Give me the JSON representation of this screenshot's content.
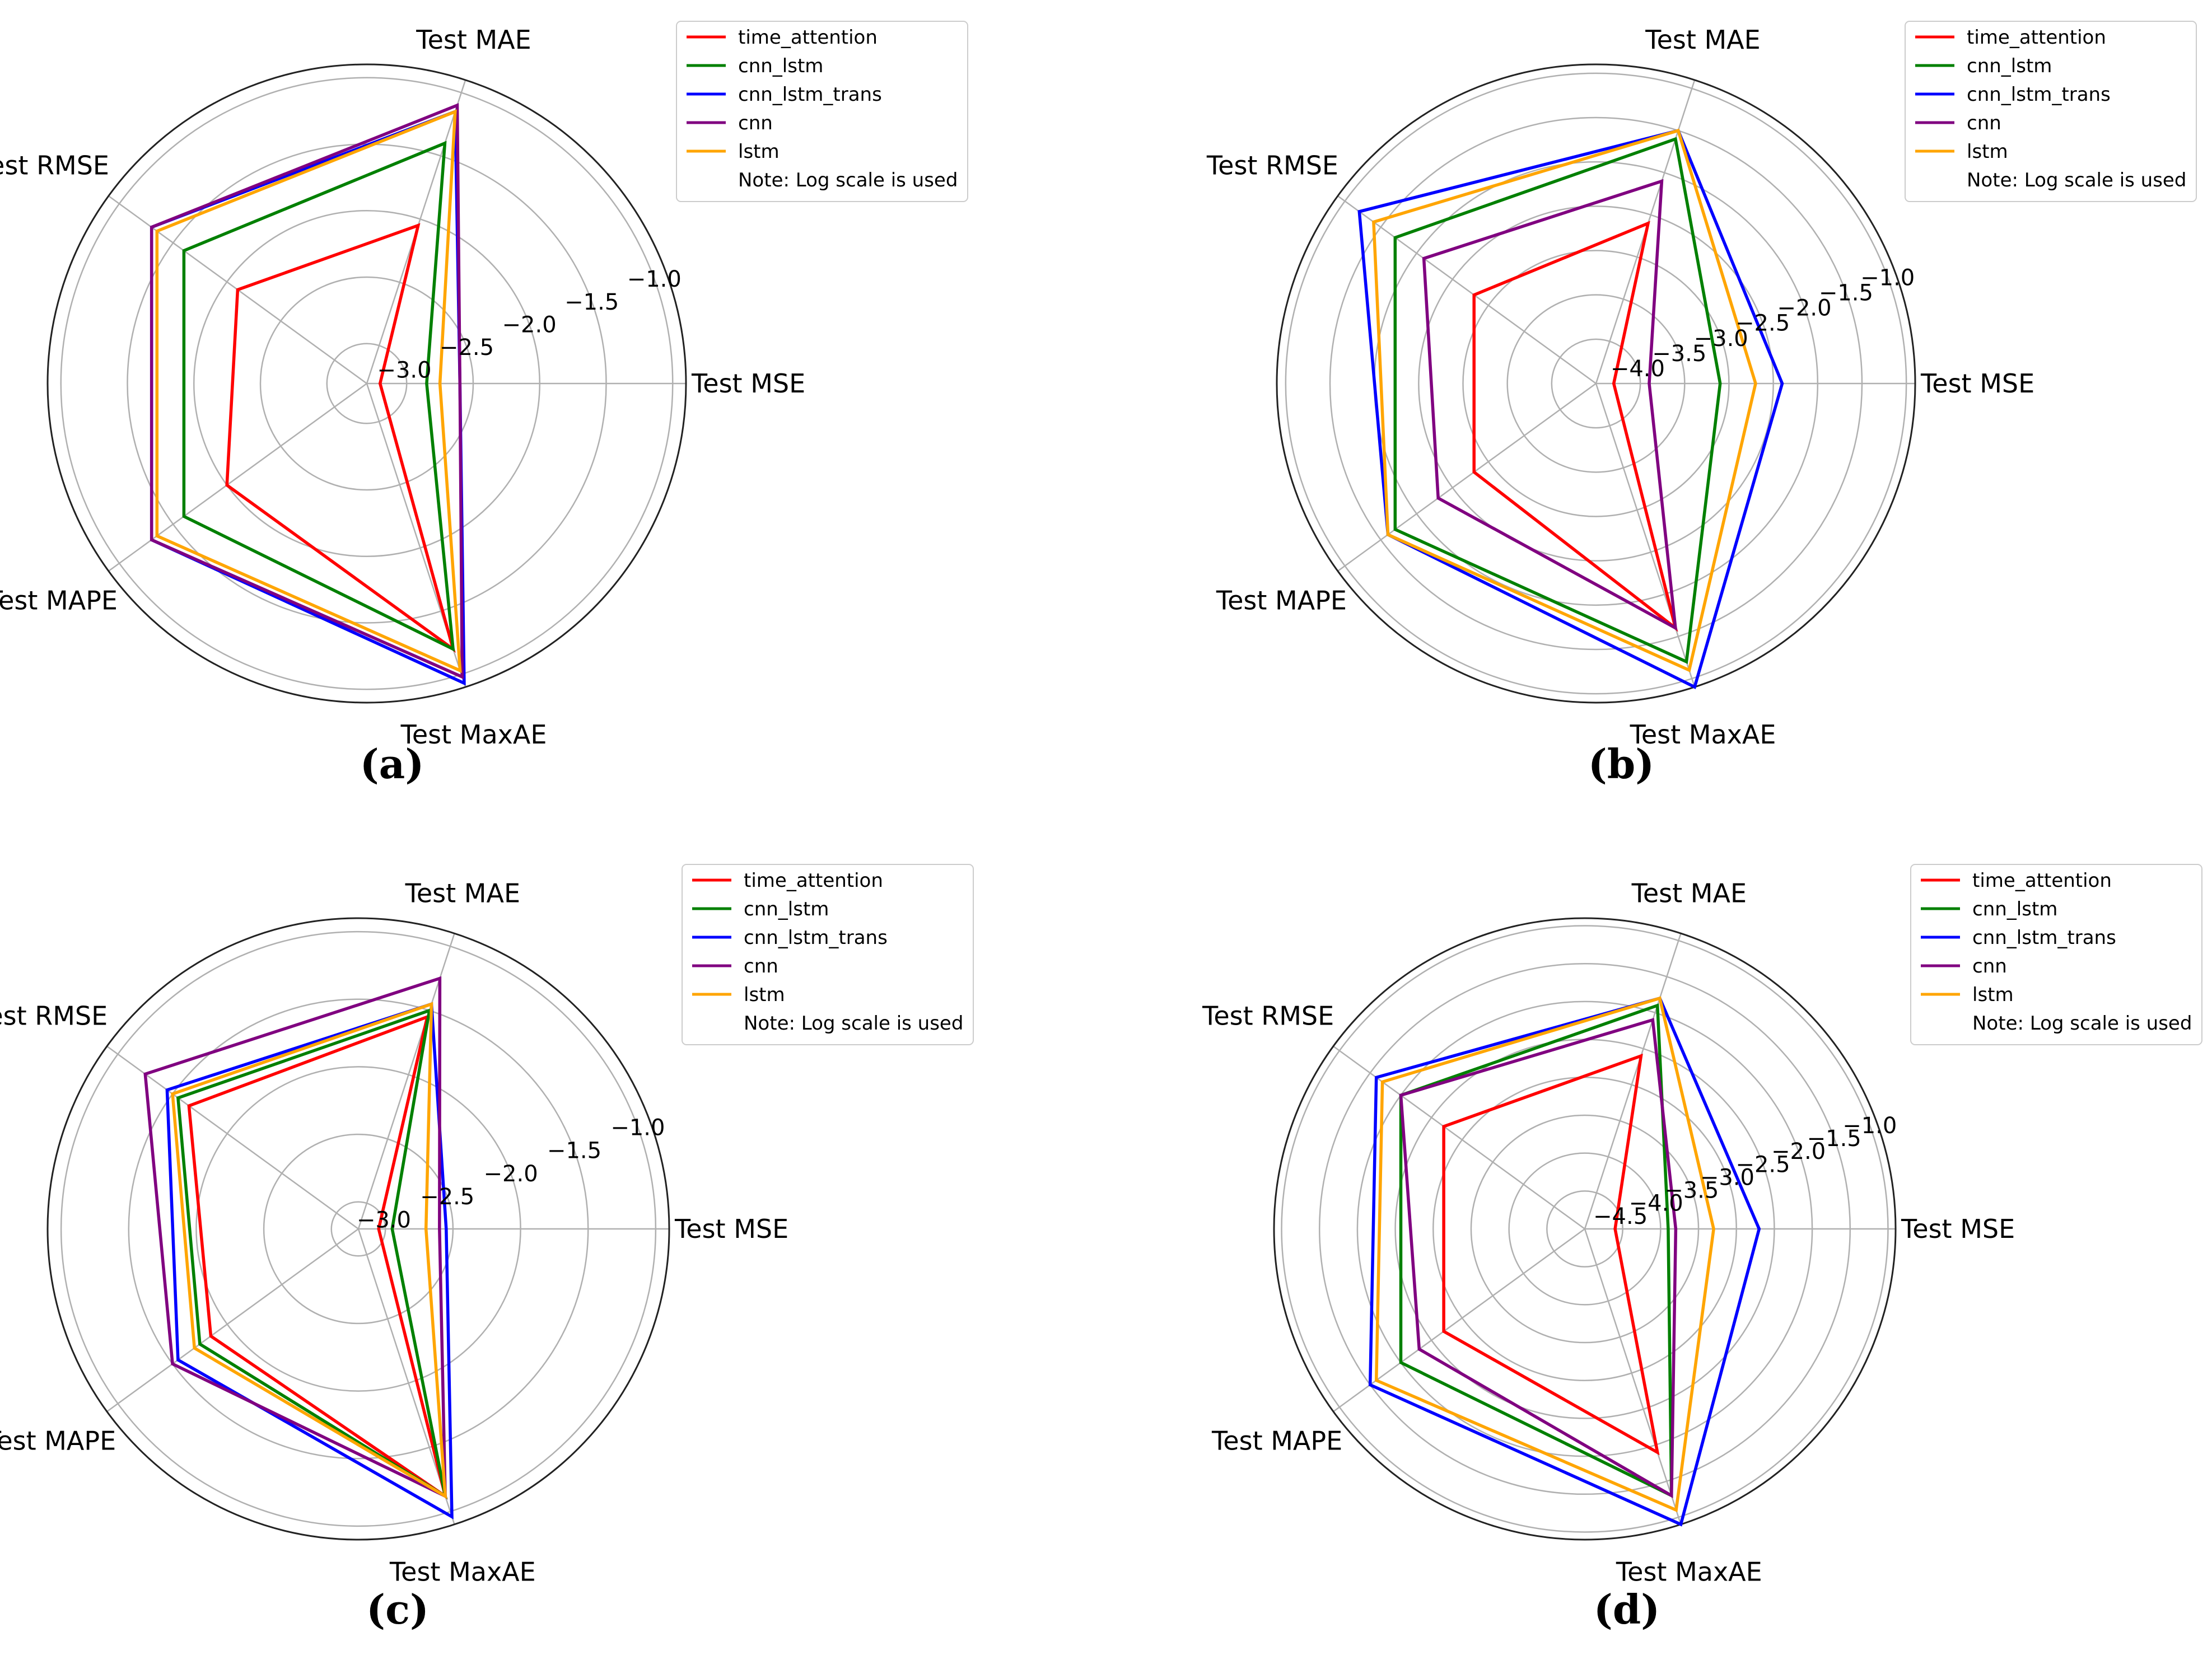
{
  "figure": {
    "legend_title_entries": [
      "time_attention",
      "cnn_lstm",
      "cnn_lstm_trans",
      "cnn",
      "lstm"
    ],
    "legend_note": "Note: Log scale is used",
    "series_colors": {
      "time_attention": "#ff0000",
      "cnn_lstm": "#008000",
      "cnn_lstm_trans": "#0000ff",
      "cnn": "#800080",
      "lstm": "#ffa500"
    }
  },
  "chart_data": [
    {
      "type": "radar",
      "panel": "(a)",
      "axes": [
        "Test MSE",
        "Test MAE",
        "Test RMSE",
        "Test MAPE",
        "Test MaxAE"
      ],
      "r_range": [
        -3.3,
        -0.9
      ],
      "r_ticks": [
        -3.0,
        -2.5,
        -2.0,
        -1.5,
        -1.0
      ],
      "r_tick_labels": [
        "−3.0",
        "−2.5",
        "−2.0",
        "−1.5",
        "−1.0"
      ],
      "series": [
        {
          "name": "time_attention",
          "values": [
            -3.2,
            -2.05,
            -2.1,
            -2.0,
            -1.2
          ]
        },
        {
          "name": "cnn_lstm",
          "values": [
            -2.85,
            -1.4,
            -1.6,
            -1.6,
            -1.2
          ]
        },
        {
          "name": "cnn_lstm_trans",
          "values": [
            -2.6,
            -1.15,
            -1.3,
            -1.3,
            -0.93
          ]
        },
        {
          "name": "cnn",
          "values": [
            -2.6,
            -1.1,
            -1.3,
            -1.3,
            -0.98
          ]
        },
        {
          "name": "lstm",
          "values": [
            -2.75,
            -1.15,
            -1.35,
            -1.35,
            -1.03
          ]
        }
      ]
    },
    {
      "type": "radar",
      "panel": "(b)",
      "axes": [
        "Test MSE",
        "Test MAE",
        "Test RMSE",
        "Test MAPE",
        "Test MaxAE"
      ],
      "r_range": [
        -4.5,
        -0.9
      ],
      "r_ticks": [
        -4.0,
        -3.5,
        -3.0,
        -2.5,
        -2.0,
        -1.5,
        -1.0
      ],
      "r_tick_labels": [
        "−4.0",
        "−3.5",
        "−3.0",
        "−2.5",
        "−2.0",
        "−1.5",
        "−1.0"
      ],
      "series": [
        {
          "name": "time_attention",
          "values": [
            -4.3,
            -2.6,
            -2.8,
            -2.8,
            -1.6
          ]
        },
        {
          "name": "cnn_lstm",
          "values": [
            -3.1,
            -1.6,
            -1.7,
            -1.7,
            -1.2
          ]
        },
        {
          "name": "cnn_lstm_trans",
          "values": [
            -2.4,
            -1.5,
            -1.2,
            -1.6,
            -0.9
          ]
        },
        {
          "name": "cnn",
          "values": [
            -3.9,
            -2.1,
            -2.1,
            -2.3,
            -1.6
          ]
        },
        {
          "name": "lstm",
          "values": [
            -2.7,
            -1.5,
            -1.4,
            -1.6,
            -1.1
          ]
        }
      ]
    },
    {
      "type": "radar",
      "panel": "(c)",
      "axes": [
        "Test MSE",
        "Test MAE",
        "Test RMSE",
        "Test MAPE",
        "Test MaxAE"
      ],
      "r_range": [
        -3.2,
        -0.9
      ],
      "r_ticks": [
        -3.0,
        -2.5,
        -2.0,
        -1.5,
        -1.0
      ],
      "r_tick_labels": [
        "−3.0",
        "−2.5",
        "−2.0",
        "−1.5",
        "−1.0"
      ],
      "series": [
        {
          "name": "time_attention",
          "values": [
            -3.05,
            -1.55,
            -1.65,
            -1.85,
            -1.12
          ]
        },
        {
          "name": "cnn_lstm",
          "values": [
            -2.95,
            -1.5,
            -1.55,
            -1.75,
            -1.12
          ]
        },
        {
          "name": "cnn_lstm_trans",
          "values": [
            -2.55,
            -1.45,
            -1.45,
            -1.55,
            -0.96
          ]
        },
        {
          "name": "cnn",
          "values": [
            -2.6,
            -1.25,
            -1.25,
            -1.5,
            -1.12
          ]
        },
        {
          "name": "lstm",
          "values": [
            -2.7,
            -1.45,
            -1.5,
            -1.7,
            -1.12
          ]
        }
      ]
    },
    {
      "type": "radar",
      "panel": "(d)",
      "axes": [
        "Test MSE",
        "Test MAE",
        "Test RMSE",
        "Test MAPE",
        "Test MaxAE"
      ],
      "r_range": [
        -5.0,
        -0.9
      ],
      "r_ticks": [
        -4.5,
        -4.0,
        -3.5,
        -3.0,
        -2.5,
        -2.0,
        -1.5,
        -1.0
      ],
      "r_tick_labels": [
        "−4.5",
        "−4.0",
        "−3.5",
        "−3.0",
        "−2.5",
        "−2.0",
        "−1.5",
        "−1.0"
      ],
      "series": [
        {
          "name": "time_attention",
          "values": [
            -4.6,
            -2.6,
            -2.7,
            -2.7,
            -1.9
          ]
        },
        {
          "name": "cnn_lstm",
          "values": [
            -3.9,
            -1.9,
            -2.0,
            -2.0,
            -1.3
          ]
        },
        {
          "name": "cnn_lstm_trans",
          "values": [
            -2.7,
            -1.8,
            -1.6,
            -1.5,
            -0.9
          ]
        },
        {
          "name": "cnn",
          "values": [
            -3.8,
            -2.1,
            -2.0,
            -2.3,
            -1.3
          ]
        },
        {
          "name": "lstm",
          "values": [
            -3.3,
            -1.8,
            -1.7,
            -1.6,
            -1.1
          ]
        }
      ]
    }
  ]
}
